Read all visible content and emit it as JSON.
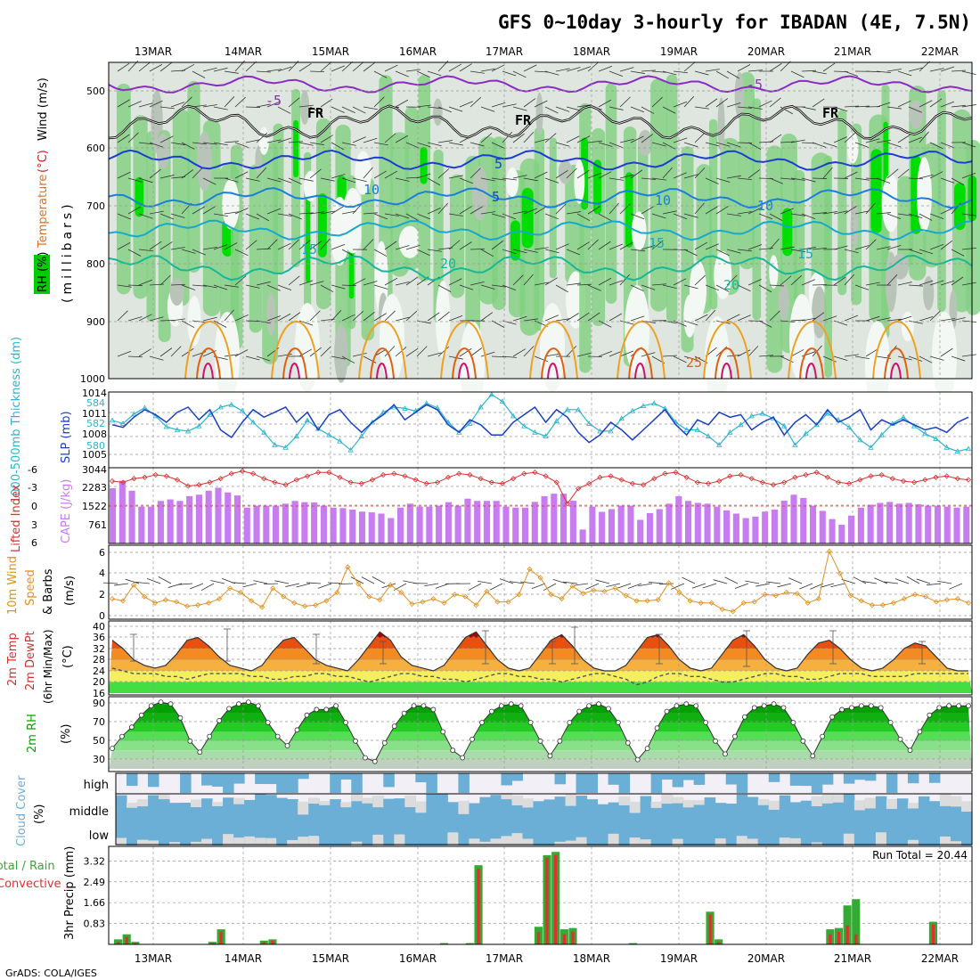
{
  "title": "GFS 0~10day 3-hourly for IBADAN (4E, 7.5N)",
  "footer": "GrADS: COLA/IGES",
  "dates": [
    "13MAR",
    "14MAR",
    "15MAR",
    "16MAR",
    "17MAR",
    "18MAR",
    "19MAR",
    "20MAR",
    "21MAR",
    "22MAR"
  ],
  "colors": {
    "rh_green": "#00cc00",
    "rh_grey": "#c8d0c8",
    "cape_bar": "#c77cf0",
    "thickness_line": "#1a3fc4",
    "slp_line": "#2cb5cc",
    "lifted_index_line": "#d83030",
    "wind_speed_line": "#e09020",
    "cloud_fill": "#6baed6",
    "precip_total": "#33aa33",
    "precip_conv": "#e23030"
  },
  "panels": {
    "upper_air": {
      "ylabel_parts": [
        "RH (%)",
        "Temperature",
        "(°C)",
        "Wind (m/s)"
      ],
      "ylabel_units": "(millibars)",
      "y_ticks": [
        "500",
        "600",
        "700",
        "800",
        "900",
        "1000"
      ],
      "isotherm_labels": [
        "-5",
        "-5",
        "FR",
        "FR",
        "FR",
        "5",
        "5",
        "10",
        "10",
        "10",
        "15",
        "15",
        "15",
        "20",
        "20",
        "25"
      ]
    },
    "thickness_slp": {
      "ylabel_left": "1000-500mb Thickness (dm)",
      "ylabel_right": "SLP (mb)",
      "left_ticks": [
        "584",
        "582",
        "580"
      ],
      "right_ticks": [
        "1014",
        "1011",
        "1008",
        "1005"
      ]
    },
    "li_cape": {
      "ylabel_left": "Lifted Index",
      "ylabel_right": "CAPE (J/kg)",
      "left_ticks": [
        "-6",
        "-3",
        "0",
        "3",
        "6"
      ],
      "right_ticks": [
        "3044",
        "2283",
        "1522",
        "761"
      ]
    },
    "wind10m": {
      "ylabel_parts": [
        "10m Wind",
        "Speed",
        "& Barbs",
        "(m/s)"
      ],
      "y_ticks": [
        "0",
        "2",
        "4",
        "6"
      ]
    },
    "temp2m": {
      "ylabel_parts": [
        "2m Temp",
        "2m DewPt",
        "(6hr Min/Max)",
        "(°C)"
      ],
      "y_ticks": [
        "16",
        "20",
        "24",
        "28",
        "32",
        "36",
        "40"
      ]
    },
    "rh2m": {
      "ylabel_parts": [
        "2m RH",
        "(%)"
      ],
      "y_ticks": [
        "30",
        "50",
        "70",
        "90"
      ]
    },
    "cloud": {
      "ylabel_parts": [
        "Cloud Cover",
        "(%)"
      ],
      "levels": [
        "high",
        "middle",
        "low"
      ]
    },
    "precip": {
      "ylabel_parts": [
        "Total / Rain",
        "Convective",
        "3hr Precip (mm)"
      ],
      "y_ticks": [
        "0.83",
        "1.66",
        "2.49",
        "3.32"
      ],
      "run_total": "Run Total = 20.44"
    }
  },
  "chart_data": [
    {
      "type": "line",
      "title": "1000-500mb Thickness / SLP",
      "series": [
        {
          "name": "1000-500mb Thickness (dm)",
          "values": [
            582.4,
            582.2,
            583.0,
            583.6,
            583.2,
            582.6,
            583.4,
            583.8,
            582.8,
            583.6,
            582.0,
            581.4,
            582.6,
            583.6,
            583.0,
            583.4,
            583.8,
            582.6,
            583.4,
            582.0,
            583.2,
            583.6,
            582.6,
            581.8,
            582.6,
            583.2,
            584.0,
            582.8,
            583.4,
            584.0,
            583.6,
            582.4,
            581.8,
            582.8,
            582.4,
            581.6,
            581.6,
            582.6,
            583.2,
            583.8,
            582.6,
            583.6,
            583.0,
            581.8,
            581.0,
            581.6,
            582.6,
            582.0,
            581.2,
            582.0,
            582.8,
            583.6,
            582.4,
            581.6,
            582.8,
            582.4,
            583.4,
            583.0,
            583.2,
            582.0,
            582.6,
            583.0,
            581.6,
            582.6,
            583.2,
            582.4,
            583.6,
            582.6,
            583.0,
            583.6,
            582.0,
            582.8,
            582.4,
            582.8,
            582.4,
            582.0,
            582.2,
            581.8,
            582.6,
            583.0
          ]
        },
        {
          "name": "SLP (mb)",
          "values": [
            1009.5,
            1009.0,
            1010.5,
            1011.5,
            1010.2,
            1008.5,
            1008.0,
            1007.8,
            1008.6,
            1010.4,
            1011.6,
            1012.0,
            1011.0,
            1009.2,
            1007.6,
            1005.6,
            1005.2,
            1007.0,
            1009.5,
            1008.2,
            1007.2,
            1006.2,
            1004.8,
            1007.0,
            1009.2,
            1010.8,
            1011.6,
            1011.4,
            1011.0,
            1012.2,
            1011.5,
            1009.2,
            1007.6,
            1009.0,
            1011.6,
            1013.6,
            1012.5,
            1010.2,
            1008.6,
            1007.6,
            1007.0,
            1009.4,
            1011.2,
            1011.2,
            1009.0,
            1007.8,
            1007.8,
            1009.8,
            1011.0,
            1011.8,
            1012.2,
            1011.4,
            1009.2,
            1008.0,
            1008.0,
            1007.0,
            1005.6,
            1007.6,
            1008.8,
            1010.2,
            1010.6,
            1009.8,
            1008.6,
            1005.6,
            1007.4,
            1008.8,
            1010.6,
            1009.6,
            1008.4,
            1006.4,
            1005.2,
            1007.2,
            1009.0,
            1010.0,
            1008.6,
            1007.4,
            1006.6,
            1005.2,
            1004.6,
            1005.0
          ]
        }
      ]
    },
    {
      "type": "bar",
      "title": "Lifted Index / CAPE",
      "x": "3-hourly steps from 12MAR 18Z",
      "series": [
        {
          "name": "CAPE (J/kg)",
          "values": [
            2220,
            2520,
            2120,
            1480,
            1480,
            1710,
            1770,
            1710,
            1900,
            1960,
            2120,
            2240,
            2050,
            1930,
            1440,
            1520,
            1520,
            1520,
            1600,
            1710,
            1660,
            1650,
            1520,
            1440,
            1420,
            1360,
            1280,
            1250,
            1200,
            1020,
            1440,
            1600,
            1480,
            1480,
            1520,
            1660,
            1520,
            1800,
            1710,
            1710,
            1710,
            1480,
            1440,
            1440,
            1670,
            1900,
            2000,
            2000,
            1720,
            560,
            1480,
            1270,
            1380,
            1520,
            1520,
            950,
            1220,
            1380,
            1600,
            1900,
            1710,
            1630,
            1600,
            1480,
            1330,
            1200,
            1020,
            1080,
            1280,
            1360,
            1720,
            1960,
            1830,
            1520,
            1310,
            980,
            750,
            1120,
            1440,
            1560,
            1630,
            1670,
            1600,
            1630,
            1580,
            1520,
            1520,
            1480,
            1440,
            1480
          ]
        },
        {
          "name": "Lifted Index",
          "values": [
            -4.0,
            -3.8,
            -4.4,
            -4.6,
            -5.0,
            -4.8,
            -4.2,
            -3.2,
            -3.4,
            -3.8,
            -4.4,
            -5.2,
            -5.6,
            -5.2,
            -4.4,
            -3.8,
            -3.4,
            -4.2,
            -4.8,
            -5.4,
            -5.4,
            -4.6,
            -3.8,
            -3.6,
            -4.2,
            -5.0,
            -5.2,
            -4.8,
            -4.2,
            -3.6,
            -3.8,
            -4.6,
            -5.2,
            -5.0,
            -4.4,
            -3.8,
            -3.6,
            -4.4,
            -5.2,
            -5.4,
            -4.8,
            -3.8,
            -0.4,
            -2.8,
            -3.6,
            -4.6,
            -4.8,
            -4.2,
            -3.6,
            -3.4,
            -4.4,
            -5.2,
            -5.4,
            -4.6,
            -3.8,
            -3.6,
            -4.0,
            -4.8,
            -5.0,
            -4.4,
            -3.8,
            -3.4,
            -3.8,
            -4.6,
            -5.0,
            -5.4,
            -4.6,
            -3.8,
            -3.6,
            -4.2,
            -4.8,
            -5.0,
            -4.4,
            -4.0,
            -3.8,
            -4.2,
            -4.6,
            -4.8,
            -4.4,
            -4.2
          ]
        }
      ]
    },
    {
      "type": "line",
      "title": "10m Wind Speed (m/s)",
      "series": [
        {
          "name": "10m Wind Speed",
          "values": [
            1.6,
            1.4,
            2.9,
            1.8,
            1.2,
            1.5,
            1.3,
            0.9,
            1.0,
            1.2,
            1.6,
            2.6,
            2.2,
            1.4,
            0.8,
            2.6,
            1.8,
            1.2,
            0.9,
            1.0,
            1.4,
            2.2,
            4.6,
            3.0,
            1.8,
            1.5,
            2.9,
            2.2,
            1.1,
            1.3,
            1.6,
            1.2,
            2.0,
            1.8,
            1.0,
            2.3,
            1.3,
            1.3,
            2.0,
            4.4,
            3.6,
            2.0,
            1.6,
            2.8,
            2.1,
            2.4,
            2.3,
            2.6,
            1.9,
            1.4,
            1.4,
            1.5,
            3.1,
            2.2,
            1.4,
            1.2,
            1.2,
            0.6,
            0.4,
            1.2,
            1.3,
            2.0,
            1.9,
            2.2,
            2.1,
            1.2,
            1.6,
            6.1,
            4.0,
            1.9,
            1.4,
            1.0,
            1.0,
            1.2,
            1.6,
            2.0,
            1.8,
            1.3,
            1.5,
            1.6,
            1.2
          ]
        }
      ]
    },
    {
      "type": "area",
      "title": "2m Temp / 2m DewPt",
      "series": [
        {
          "name": "2m Temp",
          "values": [
            35,
            32,
            28,
            26,
            25,
            26,
            30,
            35,
            36,
            33,
            29,
            26,
            25,
            24,
            26,
            31,
            35,
            36,
            32,
            28,
            26,
            25,
            24,
            28,
            33,
            38,
            35,
            29,
            26,
            25,
            24,
            26,
            31,
            36,
            38,
            33,
            28,
            25,
            24,
            25,
            30,
            35,
            37,
            33,
            28,
            25,
            24,
            24,
            26,
            31,
            36,
            37,
            33,
            28,
            25,
            24,
            25,
            30,
            35,
            37,
            33,
            28,
            25,
            24,
            25,
            30,
            34,
            35,
            32,
            28,
            25,
            24,
            25,
            28,
            32,
            34,
            33,
            29,
            25,
            24,
            24
          ]
        },
        {
          "name": "2m DewPt",
          "values": [
            25,
            24,
            23,
            23,
            23,
            22,
            22,
            21,
            22,
            23,
            23,
            23,
            23,
            22,
            22,
            21,
            21,
            22,
            22,
            23,
            23,
            22,
            22,
            21,
            20,
            21,
            22,
            23,
            23,
            22,
            22,
            21,
            21,
            20,
            21,
            22,
            23,
            23,
            22,
            22,
            21,
            21,
            20,
            21,
            22,
            23,
            23,
            22,
            21,
            19,
            20,
            22,
            23,
            23,
            22,
            22,
            21,
            20,
            20,
            21,
            22,
            23,
            23,
            22,
            22,
            21,
            21,
            22,
            23,
            23,
            23,
            22,
            22,
            22,
            22,
            23,
            23,
            23,
            23,
            23,
            23
          ]
        }
      ]
    },
    {
      "type": "area",
      "title": "2m RH (%)",
      "series": [
        {
          "name": "2m RH",
          "values": [
            42,
            55,
            65,
            78,
            88,
            92,
            90,
            75,
            50,
            38,
            55,
            72,
            85,
            90,
            92,
            88,
            70,
            55,
            45,
            62,
            78,
            84,
            84,
            88,
            70,
            50,
            32,
            28,
            48,
            66,
            80,
            88,
            88,
            84,
            60,
            40,
            32,
            52,
            70,
            82,
            88,
            90,
            88,
            70,
            50,
            34,
            50,
            70,
            82,
            88,
            90,
            85,
            70,
            48,
            30,
            42,
            64,
            82,
            88,
            90,
            88,
            70,
            50,
            36,
            55,
            76,
            86,
            88,
            90,
            86,
            70,
            50,
            34,
            55,
            76,
            84,
            86,
            88,
            88,
            86,
            70,
            52,
            40,
            60,
            78,
            86,
            88,
            88,
            88
          ]
        }
      ]
    },
    {
      "type": "bar",
      "title": "3hr Precip (mm)",
      "y_ticks": [
        0.83,
        1.66,
        2.49,
        3.32
      ],
      "series": [
        {
          "name": "Total",
          "values": [
            0.2,
            0.4,
            0.1,
            0,
            0,
            0,
            0,
            0,
            0,
            0,
            0,
            0.1,
            0.6,
            0,
            0,
            0,
            0,
            0.15,
            0.2,
            0,
            0,
            0,
            0,
            0,
            0,
            0,
            0,
            0,
            0,
            0,
            0,
            0,
            0,
            0,
            0,
            0,
            0,
            0,
            0.05,
            0,
            0,
            0.05,
            3.15,
            0,
            0,
            0,
            0,
            0,
            0,
            0.7,
            3.55,
            3.68,
            0.6,
            0.65,
            0,
            0,
            0,
            0,
            0,
            0,
            0.05,
            0,
            0,
            0,
            0,
            0,
            0,
            0,
            0,
            1.3,
            0.2,
            0,
            0,
            0,
            0,
            0,
            0,
            0,
            0,
            0,
            0,
            0,
            0,
            0.6,
            0.65,
            1.55,
            1.8,
            0,
            0,
            0,
            0,
            0,
            0,
            0,
            0,
            0.9,
            0,
            0,
            0,
            0
          ]
        },
        {
          "name": "Convective",
          "values": [
            0.1,
            0.3,
            0.05,
            0,
            0,
            0,
            0,
            0,
            0,
            0,
            0,
            0.05,
            0.5,
            0,
            0,
            0,
            0,
            0.1,
            0.15,
            0,
            0,
            0,
            0,
            0,
            0,
            0,
            0,
            0,
            0,
            0,
            0,
            0,
            0,
            0,
            0,
            0,
            0,
            0,
            0.02,
            0,
            0,
            0.02,
            3.0,
            0,
            0,
            0,
            0,
            0,
            0,
            0.5,
            3.45,
            3.55,
            0.4,
            0.5,
            0,
            0,
            0,
            0,
            0,
            0,
            0.02,
            0,
            0,
            0,
            0,
            0,
            0,
            0,
            0,
            1.2,
            0.1,
            0,
            0,
            0,
            0,
            0,
            0,
            0,
            0,
            0,
            0,
            0,
            0,
            0.4,
            0.5,
            0.75,
            0.4,
            0,
            0,
            0,
            0,
            0,
            0,
            0,
            0,
            0.8,
            0,
            0,
            0,
            0
          ]
        }
      ]
    }
  ]
}
